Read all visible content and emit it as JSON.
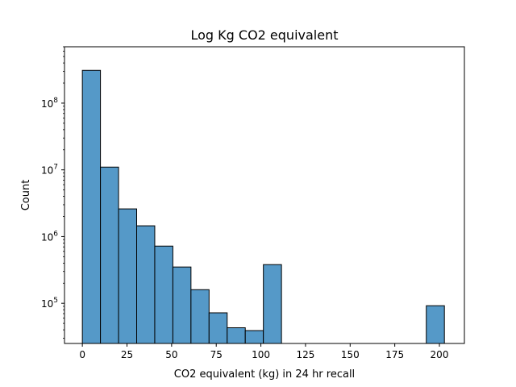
{
  "chart_data": {
    "type": "bar",
    "title": "Log Kg CO2 equivalent",
    "xlabel": "CO2 equivalent (kg) in 24 hr recall",
    "ylabel": "Count",
    "y_scale": "log",
    "ylim": [
      25000,
      700000000
    ],
    "xlim": [
      -10,
      214
    ],
    "bar_color": "#5599c8",
    "edge_color": "#000000",
    "grid": false,
    "x_ticks": [
      0,
      25,
      50,
      75,
      100,
      125,
      150,
      175,
      200
    ],
    "x_tick_labels": [
      "0",
      "25",
      "50",
      "75",
      "100",
      "125",
      "150",
      "175",
      "200"
    ],
    "y_ticks": [
      100000,
      1000000,
      10000000,
      100000000
    ],
    "y_tick_labels": [
      "10^5",
      "10^6",
      "10^7",
      "10^8"
    ],
    "bins": [
      {
        "x0": 0.0,
        "x1": 10.14,
        "count": 310000000
      },
      {
        "x0": 10.14,
        "x1": 20.28,
        "count": 11000000
      },
      {
        "x0": 20.28,
        "x1": 30.42,
        "count": 2600000
      },
      {
        "x0": 30.42,
        "x1": 40.56,
        "count": 1450000
      },
      {
        "x0": 40.56,
        "x1": 50.7,
        "count": 720000
      },
      {
        "x0": 50.7,
        "x1": 60.84,
        "count": 350000
      },
      {
        "x0": 60.84,
        "x1": 70.98,
        "count": 160000
      },
      {
        "x0": 70.98,
        "x1": 81.12,
        "count": 72000
      },
      {
        "x0": 81.12,
        "x1": 91.26,
        "count": 43000
      },
      {
        "x0": 91.26,
        "x1": 101.4,
        "count": 39000
      },
      {
        "x0": 101.4,
        "x1": 111.54,
        "count": 380000
      },
      {
        "x0": 192.66,
        "x1": 202.8,
        "count": 92000
      }
    ]
  }
}
